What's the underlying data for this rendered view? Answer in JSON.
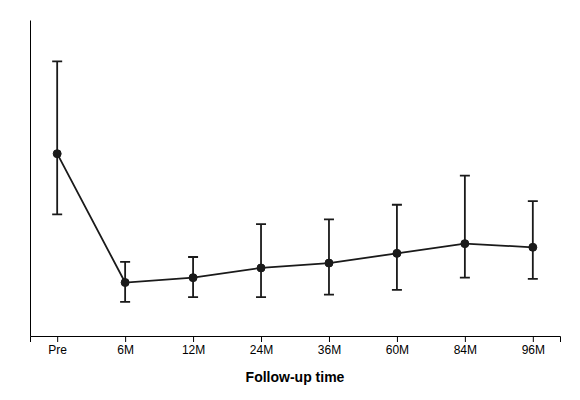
{
  "chart_data": {
    "type": "line",
    "x_label": "Follow-up time",
    "categories": [
      "Pre",
      "6M",
      "12M",
      "24M",
      "36M",
      "60M",
      "84M",
      "96M"
    ],
    "values": [
      7.5,
      2.2,
      2.4,
      2.8,
      3.0,
      3.4,
      3.8,
      3.65
    ],
    "error_lower": [
      2.5,
      0.8,
      0.8,
      1.2,
      1.3,
      1.5,
      1.4,
      1.3
    ],
    "error_upper": [
      3.8,
      0.85,
      0.85,
      1.8,
      1.8,
      2.0,
      2.8,
      1.9
    ],
    "color": "#1a1a1a",
    "marker": "circle",
    "line_style": "solid",
    "ylim": [
      0,
      13
    ],
    "tick_labels": "x"
  }
}
